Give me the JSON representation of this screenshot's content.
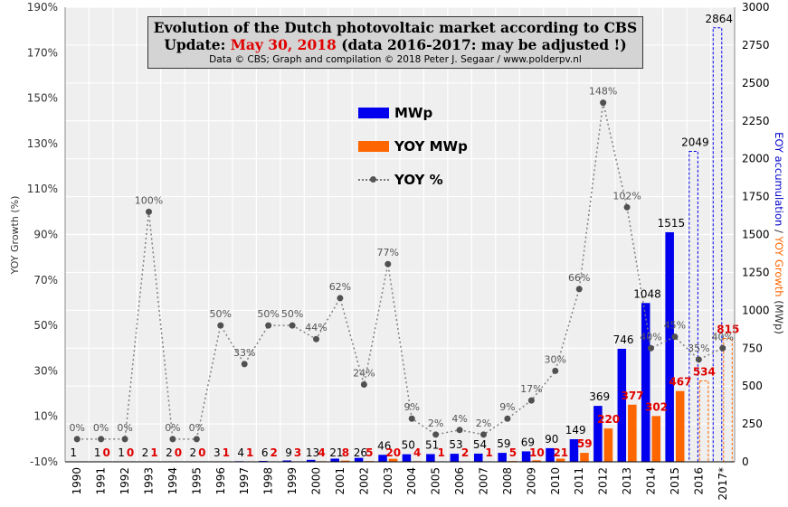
{
  "title": {
    "line1": "Evolution  of the Dutch photovoltaic  market according to CBS",
    "line2_prefix": "Update: ",
    "line2_date": "May 30, 2018",
    "line2_suffix": " (data 2016-2017: may be adjusted !)",
    "line3": "Data © CBS; Graph and compilation © 2018 Peter J. Segaar / www.polderpv.nl"
  },
  "legend": {
    "mwp": "MWp",
    "yoy_mwp": "YOY MWp",
    "yoy_pct": "YOY %"
  },
  "axes": {
    "left_label": "YOY Growth (%)",
    "right_label_part1": "EOY accumulation",
    "right_label_sep": " / ",
    "right_label_part2": "YOY Growth",
    "right_label_unit": " (MWp)"
  },
  "colors": {
    "mwp": "#0000ee",
    "yoy_mwp": "#ff6600",
    "yoy_pct_line": "#808080",
    "yoy_pct_marker": "#505050",
    "yoy_mwp_label": "#e00000",
    "plot_bg": "#efefef",
    "grid": "#ffffff"
  },
  "chart_data": {
    "type": "bar",
    "categories": [
      "1990",
      "1991",
      "1992",
      "1993",
      "1994",
      "1995",
      "1996",
      "1997",
      "1998",
      "1999",
      "2000",
      "2001",
      "2002",
      "2003",
      "2004",
      "2005",
      "2006",
      "2007",
      "2008",
      "2009",
      "2010",
      "2011",
      "2012",
      "2013",
      "2014",
      "2015",
      "2016",
      "2017*"
    ],
    "y_left": {
      "label": "YOY Growth (%)",
      "ylim": [
        -10,
        190
      ],
      "ticks": [
        -10,
        10,
        30,
        50,
        70,
        90,
        110,
        130,
        150,
        170,
        190
      ],
      "tick_labels": [
        "-10%",
        "10%",
        "30%",
        "50%",
        "70%",
        "90%",
        "110%",
        "130%",
        "150%",
        "170%",
        "190%"
      ]
    },
    "y_right": {
      "label": "EOY accumulation / YOY Growth (MWp)",
      "ylim": [
        0,
        3000
      ],
      "ticks": [
        0,
        250,
        500,
        750,
        1000,
        1250,
        1500,
        1750,
        2000,
        2250,
        2500,
        2750,
        3000
      ],
      "tick_labels": [
        "0",
        "250",
        "500",
        "750",
        "1000",
        "1250",
        "1500",
        "1750",
        "2000",
        "2250",
        "2500",
        "2750",
        "3000"
      ]
    },
    "series": [
      {
        "name": "MWp",
        "axis": "right",
        "style": "bar",
        "values": [
          1,
          1,
          1,
          2,
          2,
          2,
          3,
          4,
          6,
          9,
          13,
          21,
          26,
          46,
          50,
          51,
          53,
          54,
          59,
          69,
          90,
          149,
          369,
          746,
          1048,
          1515,
          2049,
          2864
        ],
        "labels": [
          "1",
          "1",
          "1",
          "2",
          "2",
          "2",
          "3",
          "4",
          "6",
          "9",
          "13",
          "21",
          "26",
          "46",
          "50",
          "51",
          "53",
          "54",
          "59",
          "69",
          "90",
          "149",
          "369",
          "746",
          "1048",
          "1515",
          "2049",
          "2864"
        ],
        "dashed_from_index": 26
      },
      {
        "name": "YOY MWp",
        "axis": "right",
        "style": "bar",
        "values": [
          0,
          0,
          0,
          1,
          0,
          0,
          1,
          1,
          2,
          3,
          4,
          8,
          5,
          20,
          4,
          1,
          2,
          1,
          5,
          10,
          21,
          59,
          220,
          377,
          302,
          467,
          534,
          815
        ],
        "labels": [
          "",
          "0",
          "0",
          "1",
          "0",
          "0",
          "1",
          "1",
          "2",
          "3",
          "4",
          "8",
          "5",
          "20",
          "4",
          "1",
          "2",
          "1",
          "5",
          "10",
          "21",
          "59",
          "220",
          "377",
          "302",
          "467",
          "534",
          "815"
        ],
        "dashed_from_index": 26
      },
      {
        "name": "YOY %",
        "axis": "left",
        "style": "line",
        "values": [
          0,
          0,
          0,
          100,
          0,
          0,
          50,
          33,
          50,
          50,
          44,
          62,
          24,
          77,
          9,
          2,
          4,
          2,
          9,
          17,
          30,
          66,
          148,
          102,
          40,
          45,
          35,
          40
        ],
        "labels": [
          "0%",
          "0%",
          "0%",
          "100%",
          "0%",
          "0%",
          "50%",
          "33%",
          "50%",
          "50%",
          "44%",
          "62%",
          "24%",
          "77%",
          "9%",
          "2%",
          "4%",
          "2%",
          "9%",
          "17%",
          "30%",
          "66%",
          "148%",
          "102%",
          "40%",
          "45%",
          "35%",
          "40%"
        ]
      }
    ],
    "grid": true,
    "legend_position": "upper-center"
  }
}
